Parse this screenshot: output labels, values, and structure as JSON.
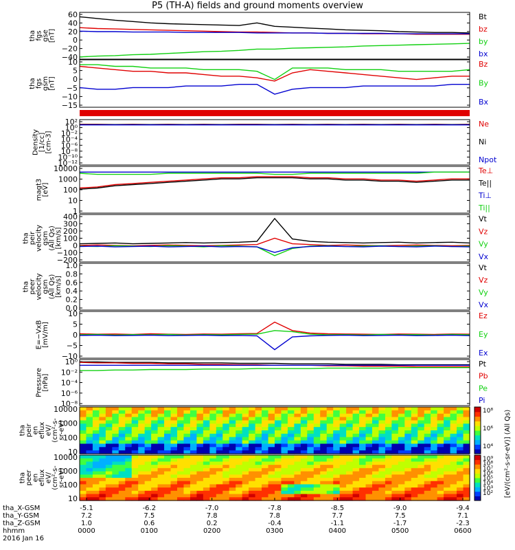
{
  "title": "P5 (TH-A) fields and ground moments overview",
  "colors": {
    "black": "#000000",
    "red": "#e00000",
    "green": "#10d010",
    "blue": "#0000d0"
  },
  "chart_data": [
    {
      "type": "line",
      "panel": "fgs-gse",
      "ylabel": [
        "tha",
        "fgs",
        "gse",
        "[nT]"
      ],
      "ticks": [
        "60",
        "40",
        "20",
        "0",
        "−20",
        "−40"
      ],
      "ylim": [
        -45,
        62
      ],
      "series": [
        {
          "name": "Bt",
          "color": "black",
          "values": [
            52,
            48,
            44,
            41,
            38,
            36,
            35,
            34,
            33,
            32,
            38,
            30,
            28,
            26,
            24,
            22,
            21,
            20,
            18,
            17,
            16,
            16,
            15
          ]
        },
        {
          "name": "bz",
          "color": "red",
          "values": [
            27,
            25,
            24,
            23,
            22,
            21,
            20,
            19,
            18,
            17,
            17,
            16,
            15,
            15,
            14,
            14,
            13,
            13,
            13,
            12,
            12,
            12,
            12
          ]
        },
        {
          "name": "by",
          "color": "green",
          "values": [
            -40,
            -38,
            -37,
            -35,
            -34,
            -32,
            -30,
            -28,
            -27,
            -25,
            -22,
            -22,
            -20,
            -19,
            -18,
            -17,
            -15,
            -14,
            -13,
            -12,
            -11,
            -10,
            -9
          ]
        },
        {
          "name": "bx",
          "color": "blue",
          "values": [
            19,
            18,
            18,
            17,
            17,
            17,
            16,
            16,
            16,
            16,
            15,
            15,
            15,
            15,
            14,
            14,
            14,
            14,
            13,
            13,
            13,
            13,
            13
          ]
        }
      ]
    },
    {
      "type": "line",
      "panel": "fgs-gsm",
      "ylabel": [
        "tha",
        "fgs",
        "gsm",
        "[nT]"
      ],
      "ticks": [
        "10",
        "5",
        "0",
        "−5",
        "−10",
        "−15"
      ],
      "ylim": [
        -18,
        11
      ],
      "series": [
        {
          "name": "Bz",
          "color": "red",
          "values": [
            7,
            6,
            5,
            4,
            4,
            3,
            3,
            2,
            1,
            1,
            0,
            -2,
            3,
            5,
            4,
            3,
            2,
            1,
            0,
            -1,
            0,
            1,
            1
          ]
        },
        {
          "name": "By",
          "color": "green",
          "values": [
            8,
            8,
            7,
            7,
            6,
            6,
            6,
            5,
            5,
            5,
            4,
            -1,
            6,
            6,
            6,
            5,
            5,
            5,
            4,
            4,
            4,
            4,
            5
          ]
        },
        {
          "name": "Bx",
          "color": "blue",
          "values": [
            -6,
            -7,
            -7,
            -6,
            -6,
            -6,
            -5,
            -5,
            -5,
            -4,
            -4,
            -10,
            -7,
            -6,
            -6,
            -6,
            -5,
            -5,
            -5,
            -5,
            -5,
            -4,
            -4
          ]
        }
      ]
    },
    {
      "type": "line",
      "panel": "density",
      "ylabel": [
        "Density",
        "[1/cc]",
        "[cm-3]"
      ],
      "ticks": [
        "10²",
        "10⁰",
        "10⁻²",
        "10⁻⁴",
        "10⁻⁶",
        "10⁻⁸",
        "10⁻¹⁰",
        "10⁻¹²"
      ],
      "ylim": [
        -13,
        2.5
      ],
      "scale": "log",
      "series": [
        {
          "name": "Ne",
          "color": "red",
          "values": [
            0.9,
            0.9,
            0.8,
            0.9,
            0.8,
            0.9,
            0.8,
            0.9,
            0.8,
            0.9,
            0.9,
            0.8,
            0.9,
            0.8,
            0.9,
            0.8,
            0.9,
            0.8,
            0.9,
            0.8,
            0.9,
            0.8,
            0.9
          ]
        },
        {
          "name": "Ni",
          "color": "black",
          "values": [
            0.8,
            0.8,
            0.8,
            0.8,
            0.8,
            0.8,
            0.8,
            0.8,
            0.8,
            0.8,
            0.8,
            0.8,
            0.8,
            0.8,
            0.8,
            0.8,
            0.8,
            0.8,
            0.8,
            0.8,
            0.8,
            0.8,
            0.8
          ]
        },
        {
          "name": "Npot",
          "color": "blue",
          "values": [
            0.7,
            0.7,
            0.7,
            0.7,
            0.7,
            0.7,
            0.7,
            0.7,
            0.7,
            0.7,
            0.7,
            0.7,
            0.7,
            0.7,
            0.7,
            0.7,
            0.7,
            0.7,
            0.7,
            0.7,
            0.7,
            0.7,
            0.7
          ]
        }
      ]
    },
    {
      "type": "line",
      "panel": "temperature",
      "ylabel": [
        "magt3",
        "[eV]"
      ],
      "ticks": [
        "10000",
        "1000",
        "100",
        "10",
        "1"
      ],
      "ylim": [
        0,
        4.1
      ],
      "scale": "log",
      "series": [
        {
          "name": "Te⊥",
          "color": "red",
          "values": [
            2.2,
            2.3,
            2.5,
            2.6,
            2.7,
            2.8,
            2.9,
            3.0,
            3.1,
            3.1,
            3.2,
            3.2,
            3.2,
            3.1,
            3.1,
            3.0,
            3.0,
            2.9,
            2.9,
            2.8,
            2.9,
            3.0,
            3.0
          ]
        },
        {
          "name": "Te||",
          "color": "black",
          "values": [
            2.1,
            2.2,
            2.4,
            2.5,
            2.6,
            2.7,
            2.8,
            2.9,
            3.0,
            3.0,
            3.1,
            3.1,
            3.1,
            3.0,
            3.0,
            2.9,
            2.9,
            2.8,
            2.8,
            2.7,
            2.8,
            2.9,
            2.9
          ]
        },
        {
          "name": "Ti⊥",
          "color": "blue",
          "values": [
            3.6,
            3.6,
            3.6,
            3.6,
            3.6,
            3.6,
            3.6,
            3.6,
            3.6,
            3.6,
            3.6,
            3.6,
            3.6,
            3.6,
            3.6,
            3.6,
            3.6,
            3.6,
            3.6,
            3.6,
            3.6,
            3.6,
            3.6
          ]
        },
        {
          "name": "Ti||",
          "color": "green",
          "values": [
            3.5,
            3.4,
            3.4,
            3.4,
            3.4,
            3.5,
            3.5,
            3.5,
            3.5,
            3.5,
            3.5,
            3.4,
            3.4,
            3.5,
            3.5,
            3.5,
            3.5,
            3.5,
            3.5,
            3.5,
            3.6,
            3.6,
            3.6
          ]
        }
      ]
    },
    {
      "type": "line",
      "panel": "peir-velocity",
      "ylabel": [
        "tha",
        "peir",
        "velocity",
        "gsm",
        "(All Qs)",
        "[km/s]"
      ],
      "ticks": [
        "400",
        "300",
        "200",
        "100",
        "0",
        "−100",
        "−200"
      ],
      "ylim": [
        -200,
        400
      ],
      "series": [
        {
          "name": "Vt",
          "color": "black",
          "values": [
            30,
            35,
            40,
            30,
            35,
            40,
            45,
            40,
            45,
            50,
            60,
            350,
            90,
            60,
            50,
            45,
            40,
            45,
            50,
            40,
            45,
            50,
            40
          ]
        },
        {
          "name": "Vz",
          "color": "red",
          "values": [
            10,
            15,
            10,
            5,
            10,
            15,
            10,
            5,
            10,
            15,
            20,
            100,
            30,
            20,
            10,
            15,
            10,
            5,
            10,
            15,
            10,
            5,
            10
          ]
        },
        {
          "name": "Vy",
          "color": "green",
          "values": [
            0,
            -5,
            5,
            0,
            -5,
            5,
            0,
            -10,
            5,
            0,
            -10,
            -120,
            -30,
            0,
            5,
            -5,
            0,
            5,
            -5,
            0,
            5,
            -5,
            0
          ]
        },
        {
          "name": "Vx",
          "color": "blue",
          "values": [
            -5,
            0,
            -10,
            -5,
            0,
            -10,
            -5,
            0,
            -10,
            -5,
            -10,
            -80,
            -20,
            -5,
            0,
            -5,
            -10,
            0,
            -5,
            -10,
            0,
            -5,
            -10
          ]
        }
      ]
    },
    {
      "type": "line",
      "panel": "peer-velocity",
      "ylabel": [
        "tha",
        "peer",
        "velocity",
        "gsm",
        "(All Qs)",
        "[km/s]"
      ],
      "ticks": [
        "1.0",
        "0.8",
        "0.6",
        "0.4",
        "0.2",
        "0.0"
      ],
      "ylim": [
        0,
        1.05
      ],
      "legend": [
        "Vt",
        "Vz",
        "Vy",
        "Vx"
      ],
      "legend_colors": [
        "black",
        "red",
        "green",
        "blue"
      ],
      "series": []
    },
    {
      "type": "line",
      "panel": "efield",
      "ylabel": [
        "E=−VxB",
        "[mV/m]"
      ],
      "ticks": [
        "10",
        "5",
        "0",
        "−5",
        "−10"
      ],
      "ylim": [
        -11,
        11
      ],
      "series": [
        {
          "name": "Ez",
          "color": "red",
          "values": [
            0.5,
            0.3,
            0.4,
            0.2,
            0.5,
            0.3,
            0.2,
            0.4,
            0.3,
            0.5,
            0.6,
            6,
            2,
            0.8,
            0.5,
            0.4,
            0.3,
            0.2,
            0.4,
            0.3,
            0.2,
            0.4,
            0.3
          ]
        },
        {
          "name": "Ey",
          "color": "green",
          "values": [
            0,
            0.2,
            -0.1,
            0.1,
            0,
            0.2,
            -0.1,
            0.1,
            0,
            0.2,
            0.3,
            2,
            1.5,
            0.3,
            0,
            0.1,
            -0.1,
            0.2,
            0,
            0.1,
            -0.1,
            0.2,
            0
          ]
        },
        {
          "name": "Ex",
          "color": "blue",
          "values": [
            -0.3,
            -0.2,
            -0.4,
            -0.3,
            -0.2,
            -0.4,
            -0.3,
            -0.2,
            -0.4,
            -0.3,
            -0.5,
            -7,
            -1,
            -0.5,
            -0.3,
            -0.2,
            -0.4,
            -0.3,
            -0.2,
            -0.4,
            -0.3,
            -0.2,
            -0.4
          ]
        }
      ]
    },
    {
      "type": "line",
      "panel": "pressure",
      "ylabel": [
        "Pressure",
        "[nPa]"
      ],
      "ticks": [
        "10⁰",
        "10⁻²",
        "10⁻⁴",
        "10⁻⁶",
        "10⁻⁸"
      ],
      "ylim": [
        -9,
        0.7
      ],
      "scale": "log",
      "series": [
        {
          "name": "Pt",
          "color": "black",
          "values": [
            0.2,
            0.2,
            0.1,
            0.1,
            0.1,
            0,
            0,
            0,
            0,
            -0.1,
            -0.1,
            -0.1,
            -0.2,
            -0.2,
            -0.2,
            -0.3,
            -0.3,
            -0.3,
            -0.4,
            -0.4,
            -0.4,
            -0.4,
            -0.4
          ]
        },
        {
          "name": "Pb",
          "color": "red",
          "values": [
            0.1,
            0,
            0,
            -0.1,
            -0.1,
            -0.2,
            -0.2,
            -0.3,
            -0.3,
            -0.4,
            -0.4,
            -0.5,
            -0.5,
            -0.5,
            -0.6,
            -0.6,
            -0.7,
            -0.7,
            -0.7,
            -0.8,
            -0.8,
            -0.8,
            -0.8
          ]
        },
        {
          "name": "Pe",
          "color": "green",
          "values": [
            -1.6,
            -1.6,
            -1.5,
            -1.5,
            -1.4,
            -1.4,
            -1.4,
            -1.3,
            -1.3,
            -1.3,
            -1.2,
            -1.2,
            -1.2,
            -1.2,
            -1.1,
            -1.1,
            -1.1,
            -1.1,
            -1.0,
            -1.0,
            -1.0,
            -1.0,
            -1.0
          ]
        },
        {
          "name": "Pi",
          "color": "blue",
          "values": [
            -0.5,
            -0.5,
            -0.5,
            -0.5,
            -0.5,
            -0.5,
            -0.5,
            -0.5,
            -0.5,
            -0.5,
            -0.5,
            -0.5,
            -0.5,
            -0.5,
            -0.5,
            -0.5,
            -0.5,
            -0.5,
            -0.5,
            -0.5,
            -0.5,
            -0.5,
            -0.5
          ]
        }
      ]
    },
    {
      "type": "heatmap",
      "panel": "peir-spectrogram",
      "ylabel": [
        "tha",
        "peir",
        "en",
        "eflux",
        "eV/",
        "(cm²-s-",
        "sr-eV)"
      ],
      "ticks": [
        "10000",
        "1000",
        "100",
        "10"
      ],
      "colorbar_ticks": [
        "10⁸",
        "10⁶",
        "10⁴"
      ]
    },
    {
      "type": "heatmap",
      "panel": "peer-spectrogram",
      "ylabel": [
        "tha",
        "peer",
        "en",
        "eflux",
        "eV/",
        "(cm²-s-",
        "sr-eV)"
      ],
      "ticks": [
        "10000",
        "1000",
        "100",
        "10"
      ],
      "colorbar_ticks": [
        "10⁹",
        "10⁸",
        "10⁷",
        "10⁶",
        "10⁵",
        "10⁴",
        "10³",
        "10²"
      ],
      "colorbar_label": "[eV/(cm²-s-sr-eV)] (All Qs)"
    }
  ],
  "xaxis": {
    "rows": [
      {
        "label": "tha_X-GSM",
        "values": [
          "-5.1",
          "-6.2",
          "-7.0",
          "-7.8",
          "-8.5",
          "-9.0",
          "-9.4"
        ]
      },
      {
        "label": "tha_Y-GSM",
        "values": [
          "7.2",
          "7.5",
          "7.8",
          "7.8",
          "7.7",
          "7.5",
          "7.1"
        ]
      },
      {
        "label": "tha_Z-GSM",
        "values": [
          "1.0",
          "0.6",
          "0.2",
          "-0.4",
          "-1.1",
          "-1.7",
          "-2.3"
        ]
      },
      {
        "label": "hhmm",
        "values": [
          "0000",
          "0100",
          "0200",
          "0300",
          "0400",
          "0500",
          "0600"
        ]
      }
    ],
    "date": "2016 Jan 16"
  }
}
